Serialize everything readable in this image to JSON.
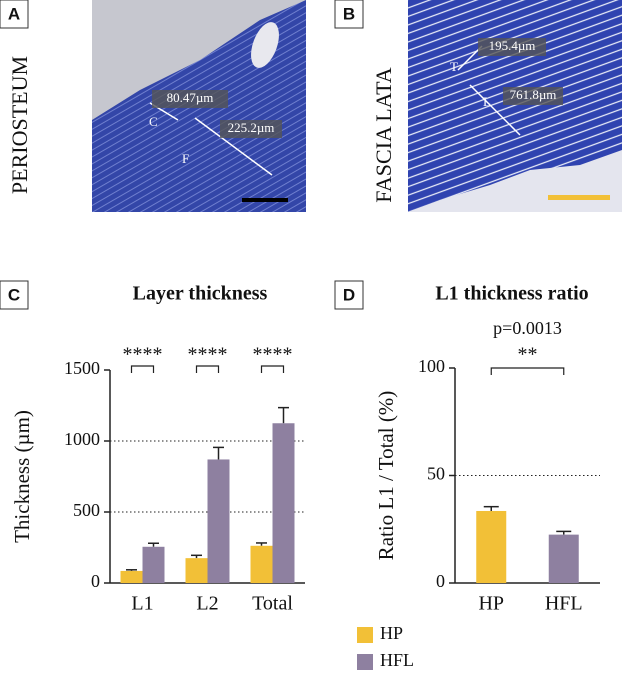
{
  "panels": {
    "A": {
      "label": "A",
      "side_label": "PERIOSTEUM",
      "annotations": [
        "80.47µm",
        "225.2µm",
        "C",
        "F"
      ]
    },
    "B": {
      "label": "B",
      "side_label": "FASCIA LATA",
      "annotations": [
        "195.4µm",
        "761.8µm",
        "T",
        "L"
      ]
    },
    "C": {
      "label": "C"
    },
    "D": {
      "label": "D"
    }
  },
  "chart_data": [
    {
      "type": "bar",
      "title": "Layer thickness",
      "y_label": "Thickness (µm)",
      "categories": [
        "L1",
        "L2",
        "Total"
      ],
      "series": [
        {
          "name": "HP",
          "color": "#f2c037",
          "values": [
            85,
            175,
            262
          ],
          "errors": [
            8,
            20,
            20
          ]
        },
        {
          "name": "HFL",
          "color": "#8e80a0",
          "values": [
            255,
            870,
            1125
          ],
          "errors": [
            25,
            85,
            110
          ]
        }
      ],
      "significance": [
        "****",
        "****",
        "****"
      ],
      "ylim": [
        0,
        1500
      ],
      "yticks": [
        0,
        500,
        1000,
        1500
      ],
      "grid": true,
      "legend": "bottom"
    },
    {
      "type": "bar",
      "title": "L1 thickness ratio",
      "y_label": "Ratio L1 / Total (%)",
      "categories": [
        "HP",
        "HFL"
      ],
      "values": [
        33.5,
        22.5
      ],
      "errors": [
        2,
        1.5
      ],
      "colors": [
        "#f2c037",
        "#8e80a0"
      ],
      "significance": "**",
      "p_label": "p=0.0013",
      "ylim": [
        0,
        100
      ],
      "yticks": [
        0,
        50,
        100
      ],
      "grid": true
    }
  ]
}
